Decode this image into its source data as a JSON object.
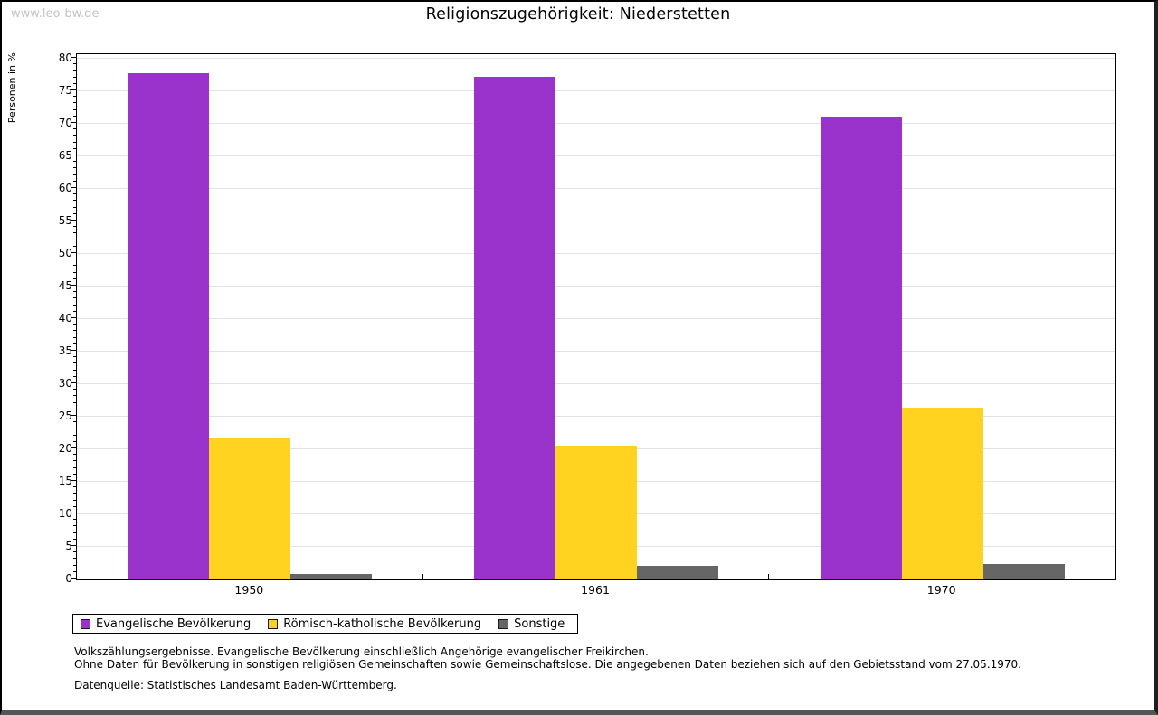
{
  "watermark": "www.leo-bw.de",
  "title": "Religionszugehörigkeit: Niederstetten",
  "chart_data": {
    "type": "bar",
    "title": "Religionszugehörigkeit: Niederstetten",
    "xlabel": "",
    "ylabel": "Personen in %",
    "categories": [
      "1950",
      "1961",
      "1970"
    ],
    "series": [
      {
        "name": "Evangelische Bevölkerung",
        "color": "#9933CC",
        "values": [
          77.8,
          77.2,
          71.1
        ]
      },
      {
        "name": "Römisch-katholische Bevölkerung",
        "color": "#FFD320",
        "values": [
          21.6,
          20.6,
          26.4
        ]
      },
      {
        "name": "Sonstige",
        "color": "#666666",
        "values": [
          0.8,
          2.1,
          2.3
        ]
      }
    ],
    "ylim": [
      0,
      80
    ],
    "ytick_step": 5,
    "minor_tick_step": 1,
    "grid": "horizontal",
    "legend_position": "bottom-left"
  },
  "footnotes": {
    "line1": "Volkszählungsergebnisse. Evangelische Bevölkerung einschließlich Angehörige evangelischer Freikirchen.",
    "line2": "Ohne Daten für Bevölkerung in sonstigen religiösen Gemeinschaften sowie Gemeinschaftslose. Die angegebenen Daten beziehen sich auf den Gebietsstand vom 27.05.1970.",
    "source": "Datenquelle: Statistisches Landesamt Baden-Württemberg."
  }
}
